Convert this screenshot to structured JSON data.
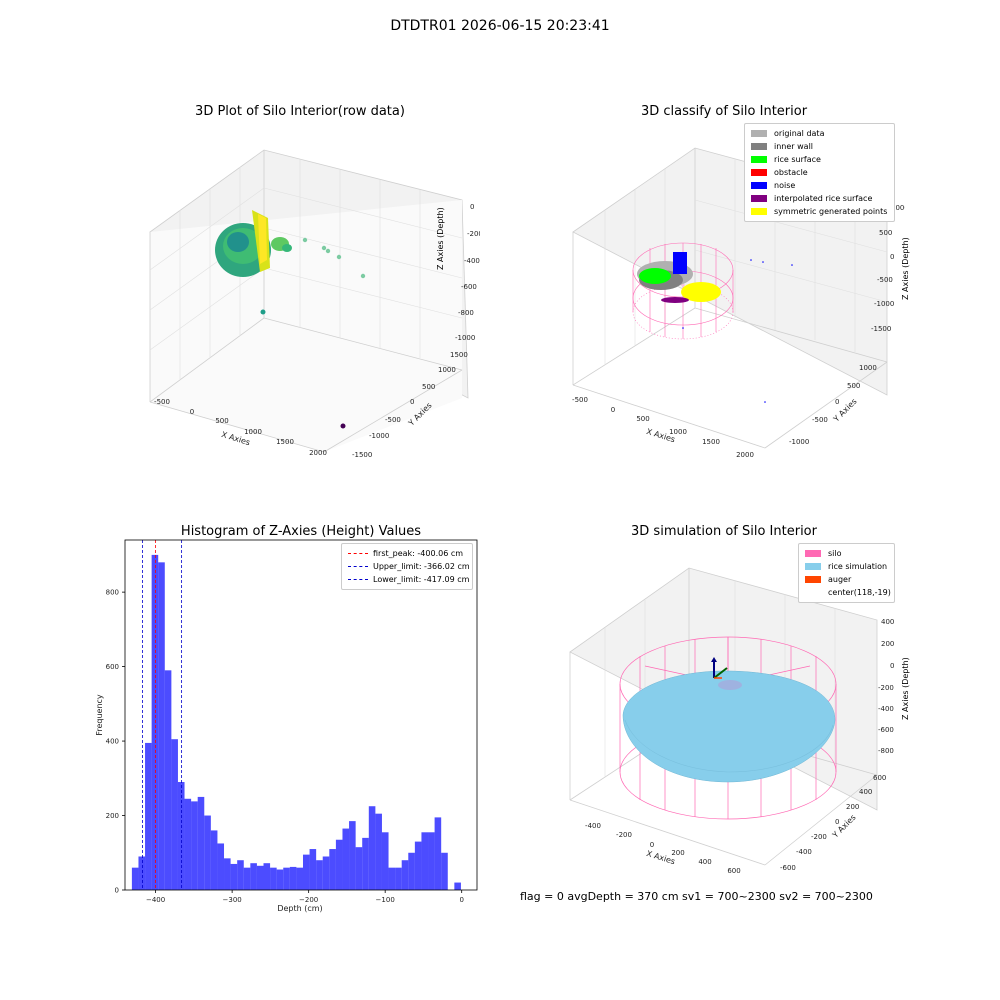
{
  "suptitle": "DTDTR01 2026-06-15 20:23:41",
  "panel1": {
    "title": "3D Plot of Silo Interior(row data)",
    "x_label": "X Axies",
    "y_label": "Y Axies",
    "z_label": "Z Axies (Depth)",
    "x_ticks": [
      "-500",
      "0",
      "500",
      "1000",
      "1500",
      "2000"
    ],
    "y_ticks": [
      "1500",
      "1000",
      "500",
      "0",
      "-500",
      "-1000",
      "-1500"
    ],
    "z_ticks": [
      "0",
      "-200",
      "-400",
      "-600",
      "-800",
      "-1000"
    ]
  },
  "panel2": {
    "title": "3D classify of Silo Interior",
    "x_label": "X Axies",
    "y_label": "Y Axies",
    "z_label": "Z Axies (Depth)",
    "x_ticks": [
      "-500",
      "0",
      "500",
      "1000",
      "1500",
      "2000"
    ],
    "y_ticks": [
      "1000",
      "500",
      "0",
      "-500",
      "-1000"
    ],
    "z_ticks": [
      "1000",
      "500",
      "0",
      "-500",
      "-1000",
      "-1500"
    ],
    "legend": [
      {
        "label": "original data",
        "color": "#b0b0b0"
      },
      {
        "label": "inner wall",
        "color": "#808080"
      },
      {
        "label": "rice surface",
        "color": "#00ff00"
      },
      {
        "label": "obstacle",
        "color": "#ff0000"
      },
      {
        "label": "noise",
        "color": "#0000ff"
      },
      {
        "label": "interpolated rice surface",
        "color": "#800080"
      },
      {
        "label": "symmetric generated points",
        "color": "#ffff00"
      }
    ]
  },
  "panel4": {
    "title": "3D simulation of Silo Interior",
    "x_label": "X Axies",
    "y_label": "Y Axies",
    "z_label": "Z Axies (Depth)",
    "x_ticks": [
      "-400",
      "-200",
      "0",
      "200",
      "400",
      "600"
    ],
    "y_ticks": [
      "600",
      "400",
      "200",
      "0",
      "-200",
      "-400",
      "-600"
    ],
    "z_ticks": [
      "400",
      "200",
      "0",
      "-200",
      "-400",
      "-600",
      "-800"
    ],
    "legend": [
      {
        "label": "silo",
        "color": "#ff69b4"
      },
      {
        "label": "rice simulation",
        "color": "#87ceeb"
      },
      {
        "label": "auger",
        "color": "#ff4500"
      },
      {
        "label": "center(118,-19)",
        "color": ""
      }
    ]
  },
  "footer": "flag = 0     avgDepth = 370 cm  sv1 = 700~2300  sv2 = 700~2300",
  "chart_data": {
    "type": "bar",
    "title": "Histogram of Z-Axies (Height) Values",
    "xlabel": "Depth (cm)",
    "ylabel": "Frequency",
    "xlim": [
      -440,
      20
    ],
    "ylim": [
      0,
      940
    ],
    "x_ticks": [
      -400,
      -300,
      -200,
      -100,
      0
    ],
    "y_ticks": [
      0,
      200,
      400,
      600,
      800
    ],
    "bin_width": 8.6,
    "bin_start": -431,
    "values": [
      60,
      90,
      395,
      900,
      880,
      590,
      405,
      290,
      245,
      238,
      250,
      200,
      160,
      125,
      85,
      70,
      80,
      60,
      72,
      65,
      72,
      60,
      55,
      60,
      62,
      60,
      95,
      110,
      80,
      90,
      110,
      135,
      165,
      185,
      115,
      140,
      225,
      205,
      155,
      60,
      60,
      80,
      100,
      130,
      155,
      155,
      195,
      100,
      0,
      20
    ],
    "color": "#0000ff",
    "lines": [
      {
        "label": "first_peak: -400.06 cm",
        "x": -400.06,
        "color": "#ff0000"
      },
      {
        "label": "Upper_limit: -366.02 cm",
        "x": -366.02,
        "color": "#0000cc"
      },
      {
        "label": "Lower_limit: -417.09 cm",
        "x": -417.09,
        "color": "#0000cc"
      }
    ]
  }
}
